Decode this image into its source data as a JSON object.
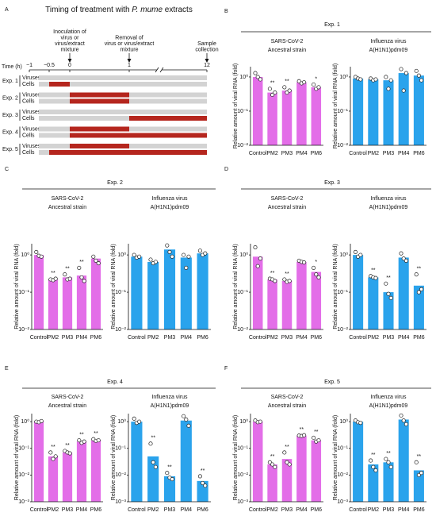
{
  "timeline": {
    "label": "A",
    "title": [
      "Timing of treatment with ",
      "P. mume",
      " extracts"
    ],
    "annotations": [
      {
        "at": 0,
        "lines": [
          "Inoculation of",
          "virus or",
          "virus/extract",
          "mixture"
        ]
      },
      {
        "at": 1,
        "lines": [
          "Removal of",
          "virus or virus/extract",
          "mixture"
        ]
      },
      {
        "at": 12,
        "lines": [
          "Sample",
          "collection"
        ]
      }
    ],
    "axis_label": "Time (h)",
    "ticks": [
      {
        "value": -1,
        "label": "−1"
      },
      {
        "value": -0.5,
        "label": "−0.5"
      },
      0,
      1,
      12
    ],
    "row_labels": [
      "Viruses",
      "Cells"
    ],
    "experiments": [
      {
        "name": "Exp. 1",
        "rows": [
          [],
          [
            [
              -0.5,
              0
            ]
          ]
        ]
      },
      {
        "name": "Exp. 2",
        "rows": [
          [
            [
              0,
              1
            ]
          ],
          [
            [
              0,
              1
            ]
          ]
        ]
      },
      {
        "name": "Exp. 3",
        "rows": [
          [],
          [
            [
              1,
              12
            ]
          ]
        ]
      },
      {
        "name": "Exp. 4",
        "rows": [
          [
            [
              0,
              1
            ]
          ],
          [
            [
              0,
              12
            ]
          ]
        ]
      },
      {
        "name": "Exp. 5",
        "rows": [
          [
            [
              0,
              1
            ]
          ],
          [
            [
              -0.5,
              12
            ]
          ]
        ]
      }
    ]
  },
  "experiments": [
    {
      "label": "B",
      "title": "Exp. 1"
    },
    {
      "label": "C",
      "title": "Exp. 2"
    },
    {
      "label": "D",
      "title": "Exp. 3"
    },
    {
      "label": "E",
      "title": "Exp. 4"
    },
    {
      "label": "F",
      "title": "Exp. 5"
    }
  ],
  "chart_data": [
    {
      "type": "bar",
      "title": [
        "SARS-CoV-2",
        "Ancestral strain"
      ],
      "ylabel": "Relative amount of viral RNA (fold)",
      "categories": [
        "Control",
        "PM2",
        "PM3",
        "PM4",
        "PM6"
      ],
      "color": "#e36ee8",
      "log": true,
      "ylim": [
        0.01,
        2
      ],
      "yticks": [
        {
          "value": 1,
          "label": "10⁰"
        },
        {
          "value": 0.1,
          "label": "10⁻¹"
        },
        {
          "value": 0.01,
          "label": "10⁻²"
        }
      ],
      "values": [
        1.0,
        0.35,
        0.4,
        0.7,
        0.5
      ],
      "points": [
        [
          1.3,
          1.0,
          0.85
        ],
        [
          0.45,
          0.3,
          0.35
        ],
        [
          0.5,
          0.35,
          0.4
        ],
        [
          0.75,
          0.65,
          0.7
        ],
        [
          0.6,
          0.45,
          0.5
        ]
      ],
      "significance": [
        null,
        "**",
        "**",
        null,
        "*"
      ]
    },
    {
      "type": "bar",
      "title": [
        "Influenza virus",
        "A(H1N1)pdm09"
      ],
      "ylabel": "Relative amount of viral RNA (fold)",
      "categories": [
        "Control",
        "PM2",
        "PM3",
        "PM4",
        "PM6"
      ],
      "color": "#2aa3ec",
      "log": true,
      "ylim": [
        0.01,
        2
      ],
      "yticks": [
        {
          "value": 1,
          "label": "10⁰"
        },
        {
          "value": 0.1,
          "label": "10⁻¹"
        },
        {
          "value": 0.01,
          "label": "10⁻²"
        }
      ],
      "values": [
        0.9,
        0.85,
        0.8,
        1.3,
        1.1
      ],
      "points": [
        [
          1.0,
          0.9,
          0.85
        ],
        [
          0.9,
          0.8,
          0.85
        ],
        [
          1.0,
          0.45,
          0.8
        ],
        [
          1.7,
          0.4,
          1.3
        ],
        [
          1.5,
          1.1,
          0.8
        ]
      ],
      "significance": [
        null,
        null,
        null,
        null,
        null
      ]
    },
    {
      "type": "bar",
      "title": [
        "SARS-CoV-2",
        "Ancestral strain"
      ],
      "ylabel": "Relative amount of viral RNA (fold)",
      "categories": [
        "Control",
        "PM2",
        "PM3",
        "PM4",
        "PM6"
      ],
      "color": "#e36ee8",
      "log": true,
      "ylim": [
        0.01,
        2
      ],
      "yticks": [
        {
          "value": 1,
          "label": "10⁰"
        },
        {
          "value": 0.1,
          "label": "10⁻¹"
        },
        {
          "value": 0.01,
          "label": "10⁻²"
        }
      ],
      "values": [
        1.0,
        0.22,
        0.25,
        0.28,
        0.8
      ],
      "points": [
        [
          1.2,
          0.95,
          0.9
        ],
        [
          0.22,
          0.21,
          0.23
        ],
        [
          0.3,
          0.22,
          0.23
        ],
        [
          0.45,
          0.25,
          0.2
        ],
        [
          0.9,
          0.7,
          0.6
        ]
      ],
      "significance": [
        null,
        "**",
        "**",
        "**",
        null
      ]
    },
    {
      "type": "bar",
      "title": [
        "Influenza virus",
        "A(H1N1)pdm09"
      ],
      "ylabel": "Relative amount of viral RNA (fold)",
      "categories": [
        "Control",
        "PM2",
        "PM3",
        "PM4",
        "PM6"
      ],
      "color": "#2aa3ec",
      "log": true,
      "ylim": [
        0.01,
        2
      ],
      "yticks": [
        {
          "value": 1,
          "label": "10⁰"
        },
        {
          "value": 0.1,
          "label": "10⁻¹"
        },
        {
          "value": 0.01,
          "label": "10⁻²"
        }
      ],
      "values": [
        0.9,
        0.65,
        1.4,
        0.85,
        1.1
      ],
      "points": [
        [
          1.0,
          0.85,
          0.9
        ],
        [
          0.75,
          0.6,
          0.65
        ],
        [
          1.8,
          1.2,
          0.9
        ],
        [
          1.0,
          0.45,
          0.9
        ],
        [
          1.3,
          1.0,
          1.1
        ]
      ],
      "significance": [
        null,
        null,
        null,
        null,
        null
      ]
    },
    {
      "type": "bar",
      "title": [
        "SARS-CoV-2",
        "Ancestral strain"
      ],
      "ylabel": "Relative amount of viral RNA (fold)",
      "categories": [
        "Control",
        "PM2",
        "PM3",
        "PM4",
        "PM6"
      ],
      "color": "#e36ee8",
      "log": true,
      "ylim": [
        0.01,
        2
      ],
      "yticks": [
        {
          "value": 1,
          "label": "10⁰"
        },
        {
          "value": 0.1,
          "label": "10⁻¹"
        },
        {
          "value": 0.01,
          "label": "10⁻²"
        }
      ],
      "values": [
        0.9,
        0.22,
        0.2,
        0.65,
        0.35
      ],
      "points": [
        [
          1.6,
          0.5,
          0.8
        ],
        [
          0.23,
          0.22,
          0.2
        ],
        [
          0.22,
          0.19,
          0.2
        ],
        [
          0.7,
          0.65,
          0.63
        ],
        [
          0.45,
          0.3,
          0.25
        ]
      ],
      "significance": [
        null,
        "**",
        "**",
        null,
        "*"
      ]
    },
    {
      "type": "bar",
      "title": [
        "Influenza virus",
        "A(H1N1)pdm09"
      ],
      "ylabel": "Relative amount of viral RNA (fold)",
      "categories": [
        "Control",
        "PM2",
        "PM3",
        "PM4",
        "PM6"
      ],
      "color": "#2aa3ec",
      "log": true,
      "ylim": [
        0.01,
        2
      ],
      "yticks": [
        {
          "value": 1,
          "label": "10⁰"
        },
        {
          "value": 0.1,
          "label": "10⁻¹"
        },
        {
          "value": 0.01,
          "label": "10⁻²"
        }
      ],
      "values": [
        1.0,
        0.25,
        0.1,
        0.85,
        0.15
      ],
      "points": [
        [
          1.2,
          0.9,
          1.0
        ],
        [
          0.27,
          0.25,
          0.24
        ],
        [
          0.17,
          0.09,
          0.07
        ],
        [
          1.1,
          0.8,
          0.7
        ],
        [
          0.3,
          0.1,
          0.12
        ]
      ],
      "significance": [
        null,
        "**",
        "**",
        null,
        "**"
      ]
    },
    {
      "type": "bar",
      "title": [
        "SARS-CoV-2",
        "Ancestral strain"
      ],
      "ylabel": "Relative amount of viral RNA (fold)",
      "categories": [
        "Control",
        "PM2",
        "PM3",
        "PM4",
        "PM6"
      ],
      "color": "#e36ee8",
      "log": true,
      "ylim": [
        0.001,
        2
      ],
      "yticks": [
        {
          "value": 1,
          "label": "10⁰"
        },
        {
          "value": 0.1,
          "label": "10⁻¹"
        },
        {
          "value": 0.01,
          "label": "10⁻²"
        },
        {
          "value": 0.001,
          "label": "10⁻³"
        }
      ],
      "values": [
        1.0,
        0.05,
        0.07,
        0.18,
        0.2
      ],
      "points": [
        [
          1.0,
          0.95,
          1.05
        ],
        [
          0.07,
          0.04,
          0.05
        ],
        [
          0.08,
          0.07,
          0.065
        ],
        [
          0.2,
          0.16,
          0.18
        ],
        [
          0.22,
          0.19,
          0.2
        ]
      ],
      "significance": [
        null,
        "**",
        "**",
        "**",
        "**"
      ]
    },
    {
      "type": "bar",
      "title": [
        "Influenza virus",
        "A(H1N1)pdm09"
      ],
      "ylabel": "Relative amount of viral RNA (fold)",
      "categories": [
        "Control",
        "PM2",
        "PM3",
        "PM4",
        "PM6"
      ],
      "color": "#2aa3ec",
      "log": true,
      "ylim": [
        0.001,
        2
      ],
      "yticks": [
        {
          "value": 1,
          "label": "10⁰"
        },
        {
          "value": 0.1,
          "label": "10⁻¹"
        },
        {
          "value": 0.01,
          "label": "10⁻²"
        },
        {
          "value": 0.001,
          "label": "10⁻³"
        }
      ],
      "values": [
        1.0,
        0.05,
        0.009,
        1.1,
        0.006
      ],
      "points": [
        [
          1.3,
          0.9,
          1.0
        ],
        [
          0.15,
          0.03,
          0.02
        ],
        [
          0.012,
          0.008,
          0.007
        ],
        [
          1.6,
          1.2,
          0.7
        ],
        [
          0.009,
          0.005,
          0.004
        ]
      ],
      "significance": [
        null,
        "**",
        "**",
        null,
        "**"
      ]
    },
    {
      "type": "bar",
      "title": [
        "SARS-CoV-2",
        "Ancestral strain"
      ],
      "ylabel": "Relative amount of viral RNA (fold)",
      "categories": [
        "Control",
        "PM2",
        "PM3",
        "PM4",
        "PM6"
      ],
      "color": "#e36ee8",
      "log": true,
      "ylim": [
        0.001,
        2
      ],
      "yticks": [
        {
          "value": 1,
          "label": "10⁰"
        },
        {
          "value": 0.1,
          "label": "10⁻¹"
        },
        {
          "value": 0.01,
          "label": "10⁻²"
        },
        {
          "value": 0.001,
          "label": "10⁻³"
        }
      ],
      "values": [
        1.0,
        0.025,
        0.04,
        0.3,
        0.2
      ],
      "points": [
        [
          1.1,
          0.95,
          1.0
        ],
        [
          0.03,
          0.025,
          0.02
        ],
        [
          0.07,
          0.03,
          0.025
        ],
        [
          0.3,
          0.29,
          0.31
        ],
        [
          0.25,
          0.18,
          0.2
        ]
      ],
      "significance": [
        null,
        "**",
        "**",
        "**",
        "**"
      ]
    },
    {
      "type": "bar",
      "title": [
        "Influenza virus",
        "A(H1N1)pdm09"
      ],
      "ylabel": "Relative amount of viral RNA (fold)",
      "categories": [
        "Control",
        "PM2",
        "PM3",
        "PM4",
        "PM6"
      ],
      "color": "#2aa3ec",
      "log": true,
      "ylim": [
        0.001,
        2
      ],
      "yticks": [
        {
          "value": 1,
          "label": "10⁰"
        },
        {
          "value": 0.1,
          "label": "10⁻¹"
        },
        {
          "value": 0.01,
          "label": "10⁻²"
        },
        {
          "value": 0.001,
          "label": "10⁻³"
        }
      ],
      "values": [
        1.0,
        0.025,
        0.03,
        1.2,
        0.015
      ],
      "points": [
        [
          1.1,
          0.95,
          0.9
        ],
        [
          0.035,
          0.02,
          0.015
        ],
        [
          0.04,
          0.03,
          0.02
        ],
        [
          1.7,
          1.1,
          0.8
        ],
        [
          0.03,
          0.01,
          0.012
        ]
      ],
      "significance": [
        null,
        "**",
        "**",
        null,
        "**"
      ]
    }
  ]
}
